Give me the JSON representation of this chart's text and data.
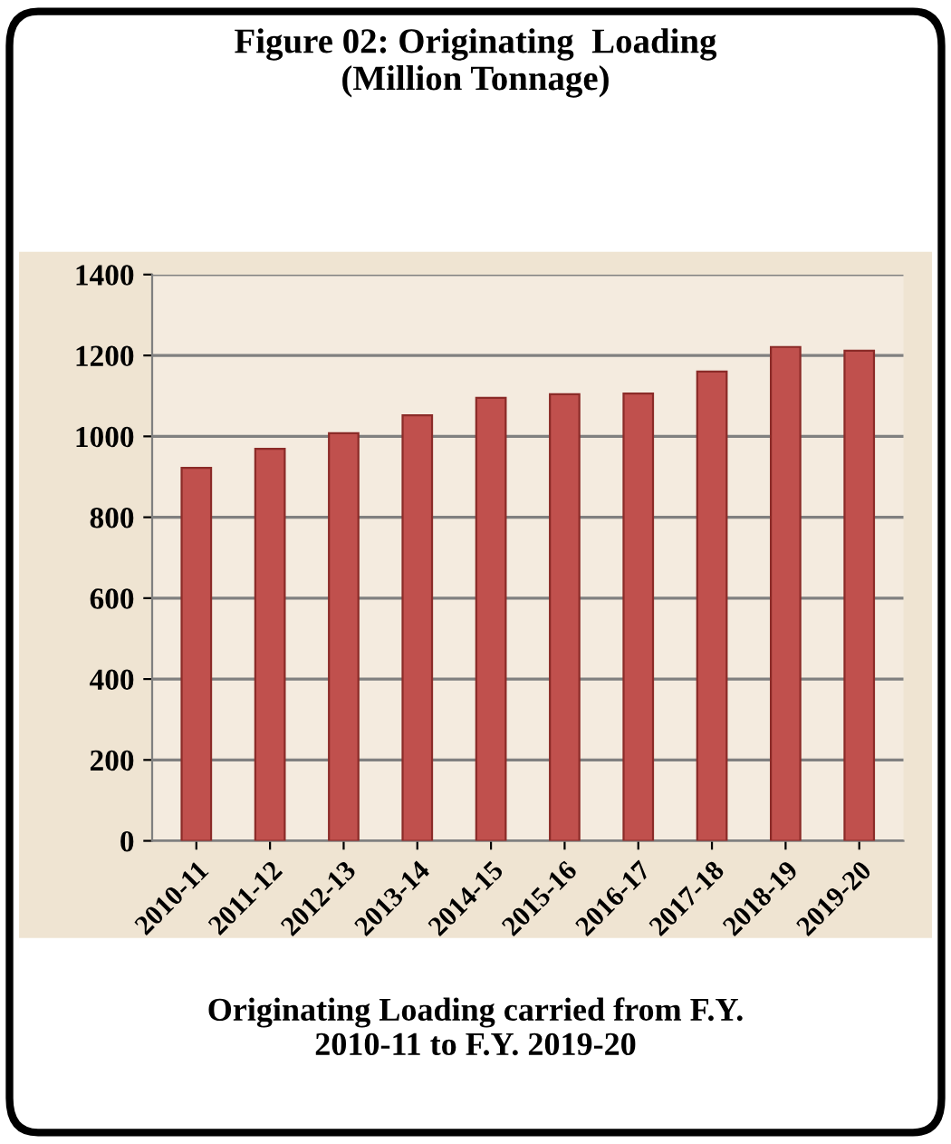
{
  "chart_data": {
    "type": "bar",
    "title": "Figure 02: Originating  Loading\n(Million Tonnage)",
    "categories": [
      "2010-11",
      "2011-12",
      "2012-13",
      "2013-14",
      "2014-15",
      "2015-16",
      "2016-17",
      "2017-18",
      "2018-19",
      "2019-20"
    ],
    "values": [
      922,
      969,
      1008,
      1052,
      1095,
      1104,
      1106,
      1160,
      1221,
      1212
    ],
    "color": "#c0504d",
    "ylim": [
      0,
      1400
    ],
    "yticks": [
      0,
      200,
      400,
      600,
      800,
      1000,
      1200,
      1400
    ],
    "grid": "y",
    "annotations": [
      "Originating Loading carried from F.Y.\n2010-11 to F.Y. 2019-20"
    ]
  }
}
